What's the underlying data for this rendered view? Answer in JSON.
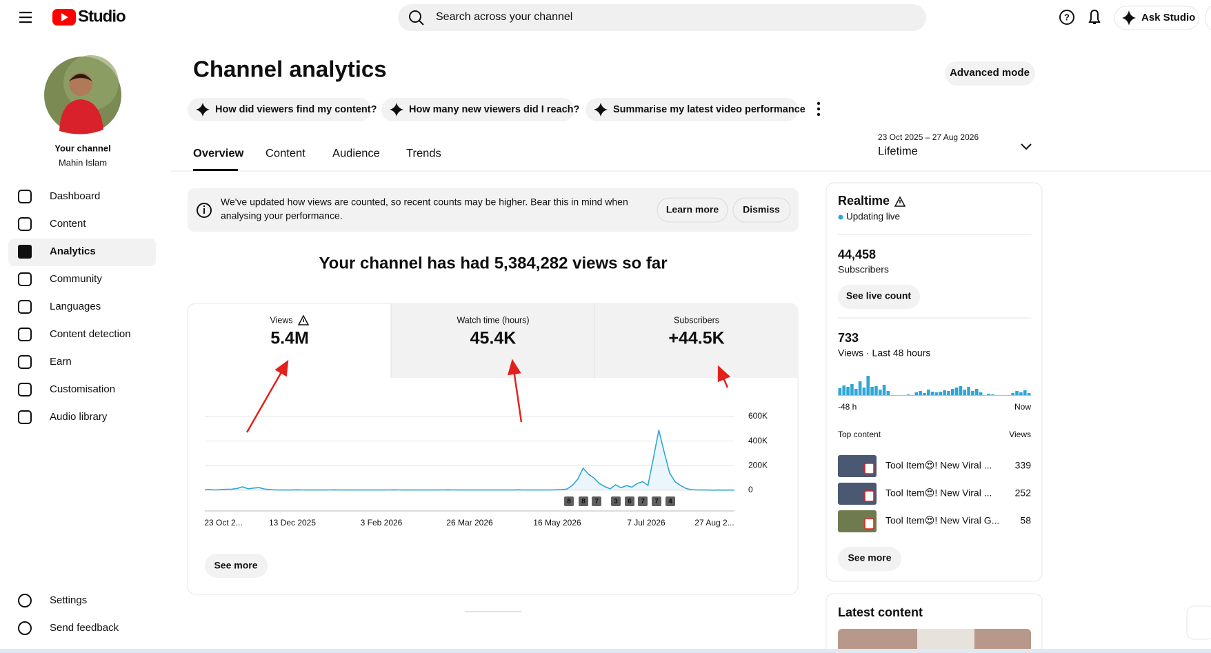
{
  "header": {
    "logo": "Studio",
    "search_placeholder": "Search across your channel",
    "ask_button": "Ask Studio"
  },
  "sidebar": {
    "channel_label": "Your channel",
    "channel_name": "Mahin Islam",
    "nav": [
      "Dashboard",
      "Content",
      "Analytics",
      "Community",
      "Languages",
      "Content detection",
      "Earn",
      "Customisation",
      "Audio library"
    ],
    "footer": [
      "Settings",
      "Send feedback"
    ]
  },
  "main": {
    "title": "Channel analytics",
    "advanced_button": "Advanced mode",
    "prompts": [
      "How did viewers find my content?",
      "How many new viewers did I reach?",
      "Summarise my latest video performance"
    ],
    "tabs": [
      "Overview",
      "Content",
      "Audience",
      "Trends"
    ],
    "date_range": "23 Oct 2025 – 27 Aug 2026",
    "period": "Lifetime",
    "notice": {
      "lines": [
        "We've updated how views are counted, so recent counts may be higher. Bear this in mind when",
        "analysing your performance."
      ],
      "learn_more": "Learn more",
      "dismiss": "Dismiss"
    },
    "headline": "Your channel has had 5,384,282 views so far",
    "metrics": [
      {
        "label": "Views",
        "value": "5.4M"
      },
      {
        "label": "Watch time (hours)",
        "value": "45.4K"
      },
      {
        "label": "Subscribers",
        "value": "+44.5K"
      }
    ],
    "chart": {
      "type": "line",
      "color": "#2ea6d6",
      "ylim": [
        0,
        600000
      ],
      "yticks": [
        {
          "value": 0,
          "label": "0"
        },
        {
          "value": 200000,
          "label": "200K"
        },
        {
          "value": 400000,
          "label": "400K"
        },
        {
          "value": 600000,
          "label": "600K"
        }
      ],
      "x_labels": [
        "23 Oct 2...",
        "13 Dec 2025",
        "3 Feb 2026",
        "26 Mar 2026",
        "16 May 2026",
        "7 Jul 2026",
        "27 Aug 2..."
      ],
      "markers": [
        8,
        8,
        7,
        3,
        6,
        7,
        7,
        4
      ],
      "values": [
        4000,
        5000,
        3000,
        6000,
        8000,
        9000,
        15000,
        28000,
        12000,
        18000,
        22000,
        10000,
        6000,
        3000,
        2000,
        3000,
        2000,
        4000,
        3000,
        2000,
        2000,
        3000,
        2000,
        3000,
        4000,
        2000,
        3000,
        2000,
        2000,
        3000,
        2000,
        3000,
        2000,
        2000,
        3000,
        4000,
        3000,
        2000,
        2000,
        3000,
        2000,
        2000,
        3000,
        2000,
        3000,
        4000,
        3000,
        2000,
        2000,
        3000,
        2000,
        3000,
        2000,
        2000,
        3000,
        2000,
        3000,
        2000,
        4000,
        3000,
        2000,
        3000,
        2000,
        2000,
        3000,
        4000,
        5000,
        10000,
        40000,
        90000,
        180000,
        130000,
        100000,
        55000,
        30000,
        12000,
        45000,
        20000,
        38000,
        25000,
        55000,
        70000,
        40000,
        260000,
        490000,
        310000,
        140000,
        70000,
        40000,
        15000,
        5000,
        3000,
        2000,
        2000,
        1000,
        2000,
        1000,
        2000,
        1000
      ]
    },
    "see_more": "See more"
  },
  "realtime": {
    "title": "Realtime",
    "status": "Updating live",
    "subscribers": "44,458",
    "subscribers_label": "Subscribers",
    "live_button": "See live count",
    "views": "733",
    "views_label": "Views · Last 48 hours",
    "bars": [
      10,
      14,
      12,
      16,
      9,
      20,
      11,
      28,
      12,
      13,
      8,
      15,
      6,
      0,
      0,
      0,
      0,
      1,
      0,
      4,
      6,
      3,
      8,
      5,
      4,
      5,
      7,
      6,
      9,
      11,
      13,
      8,
      12,
      6,
      9,
      4,
      0,
      2,
      1,
      0,
      0,
      0,
      0,
      3,
      6,
      4,
      7,
      3
    ],
    "x_start": "-48 h",
    "x_end": "Now",
    "top_content_label": "Top content",
    "views_col": "Views",
    "top_content": [
      {
        "title": "Tool Item😍! New Viral ...",
        "views": 339
      },
      {
        "title": "Tool Item😍! New Viral ...",
        "views": 252
      },
      {
        "title": "Tool Item😍! New Viral G...",
        "views": 58
      }
    ],
    "see_more": "See more"
  },
  "latest": {
    "title": "Latest content"
  }
}
